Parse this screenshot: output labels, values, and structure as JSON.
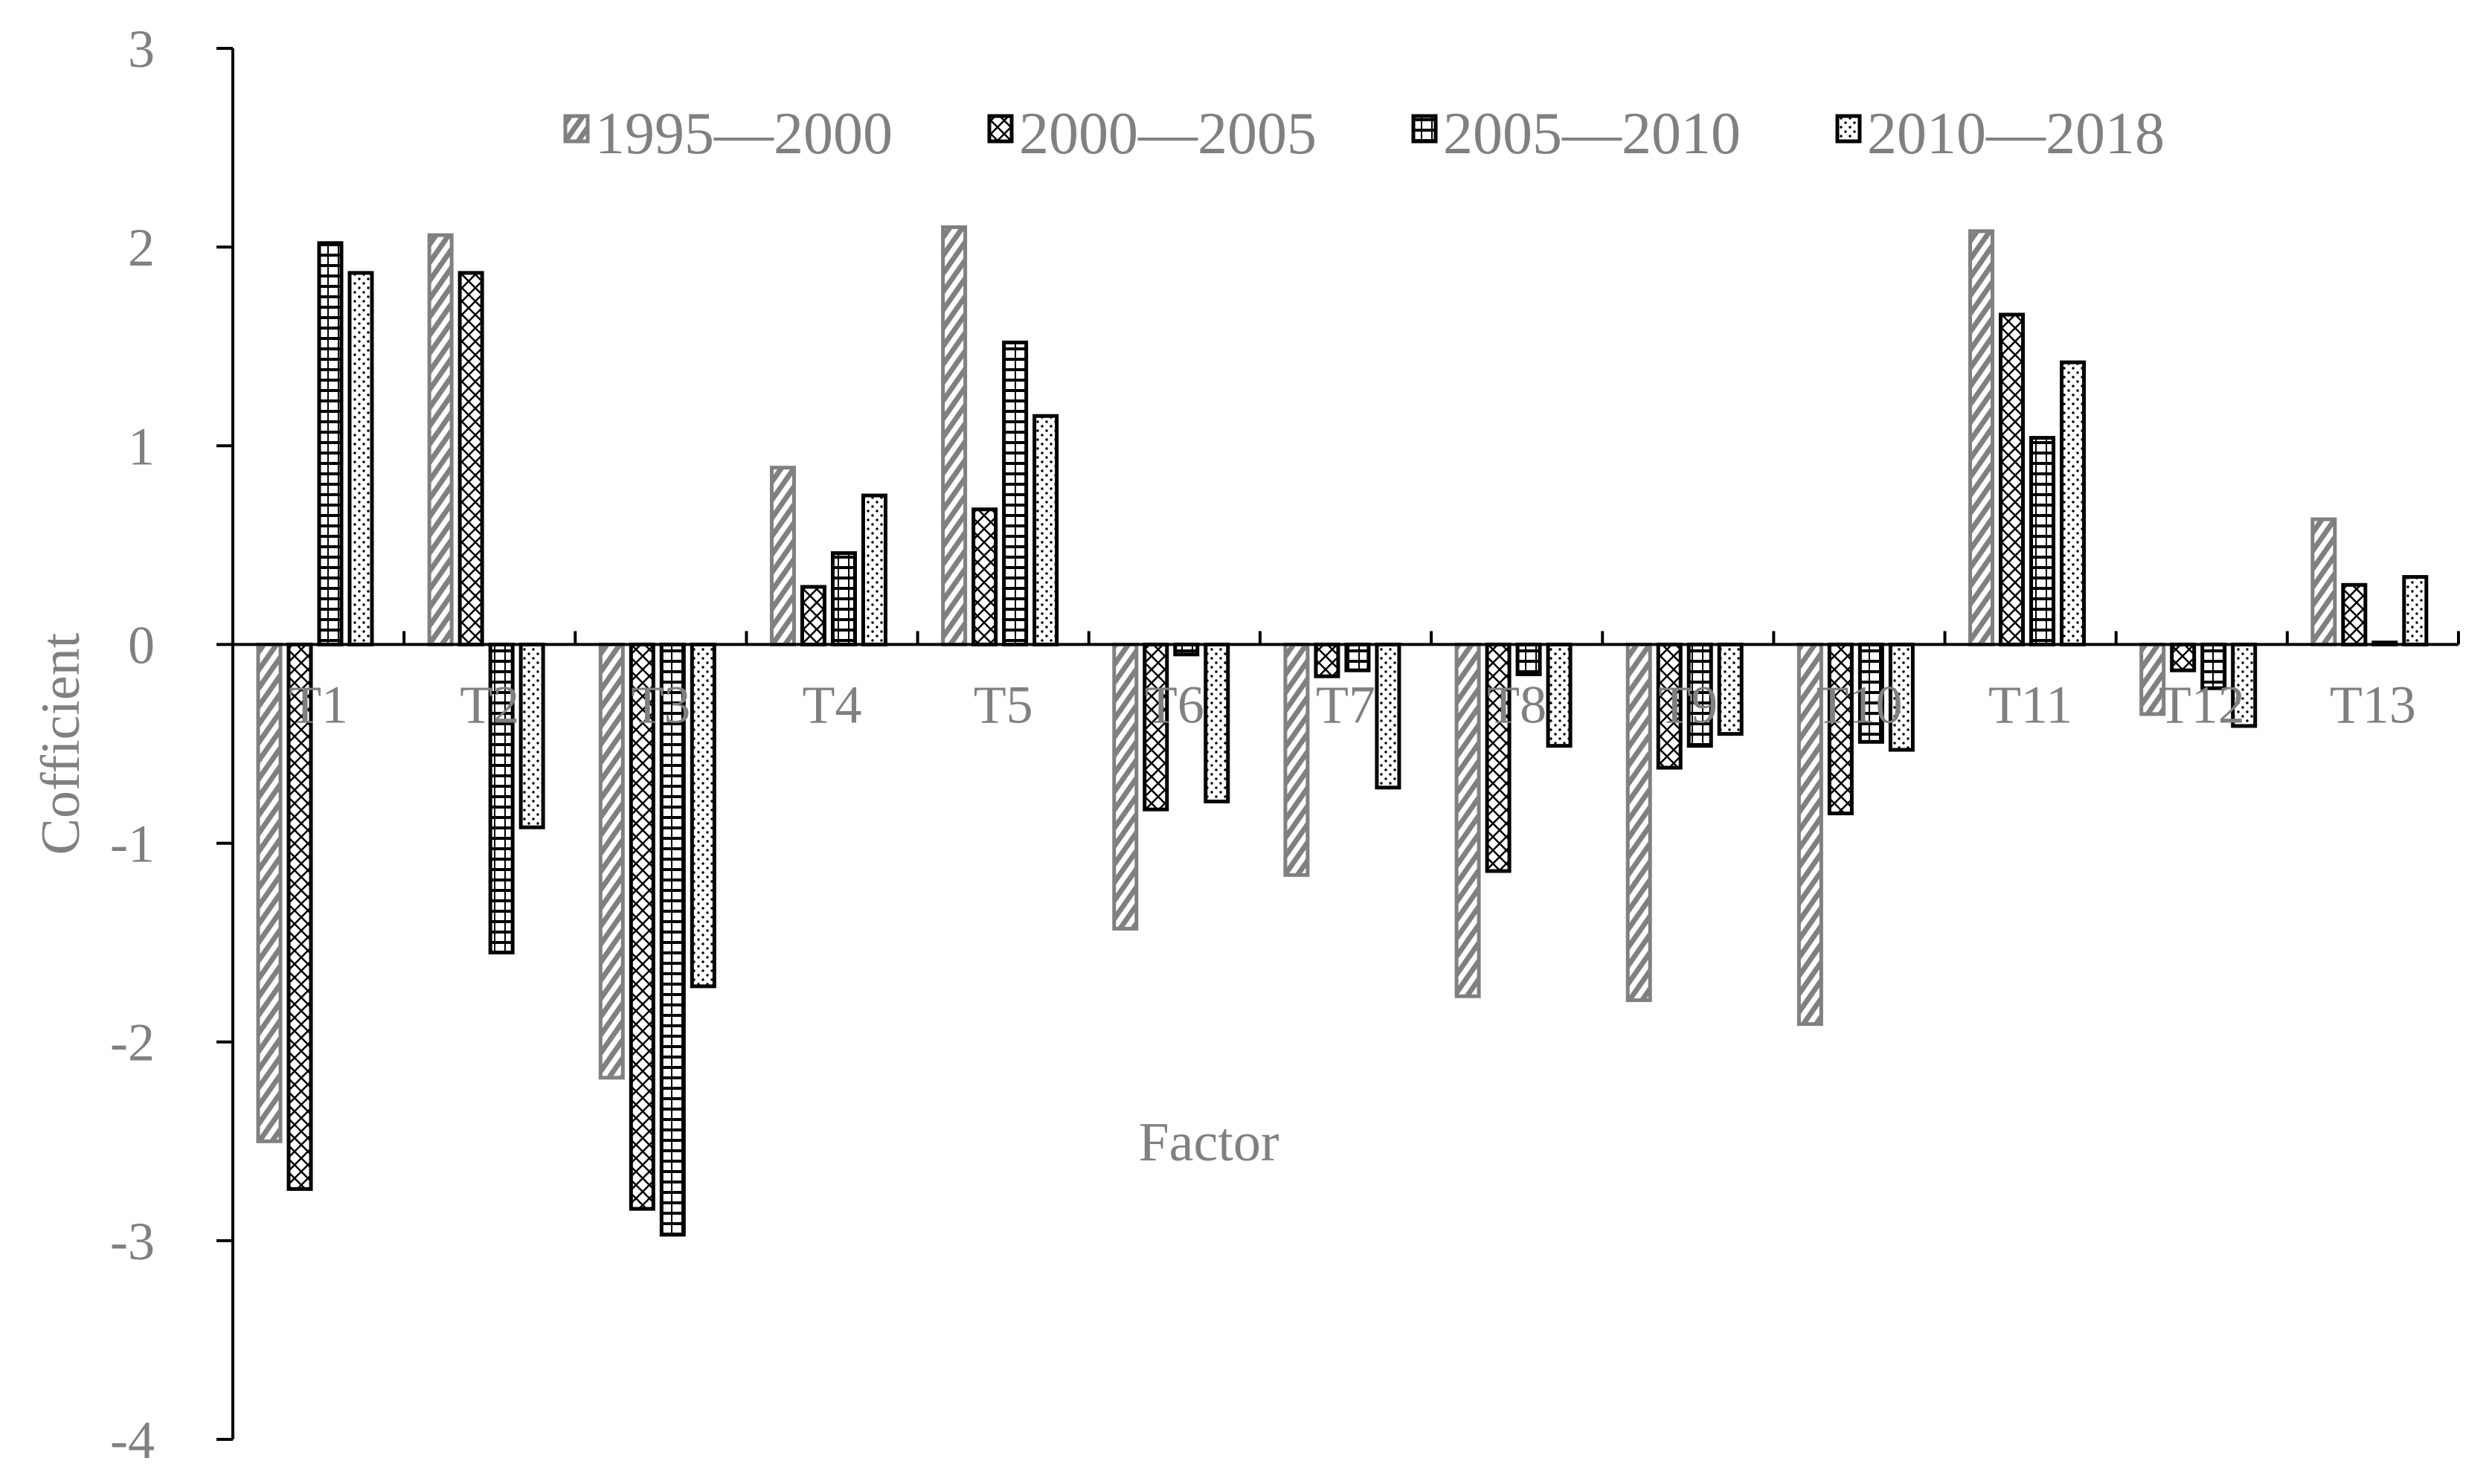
{
  "chart_data": {
    "type": "bar",
    "xlabel": "Factor",
    "ylabel": "Cofficient",
    "ylim": [
      -4,
      3
    ],
    "yticks": [
      3,
      2,
      1,
      0,
      -1,
      -2,
      -3,
      -4
    ],
    "legend_position": "top",
    "grid": false,
    "categories": [
      "T1",
      "T2",
      "T3",
      "T4",
      "T5",
      "T6",
      "T7",
      "T8",
      "T9",
      "T10",
      "T11",
      "T12",
      "T13"
    ],
    "series": [
      {
        "name": "1995—2000",
        "pattern": "diagonal",
        "color": "#808080",
        "values": [
          -2.5,
          2.06,
          -2.18,
          0.89,
          2.1,
          -1.43,
          -1.16,
          -1.77,
          -1.79,
          -1.91,
          2.08,
          -0.35,
          0.63
        ]
      },
      {
        "name": "2000—2005",
        "pattern": "crosshatch",
        "color": "#000000",
        "values": [
          -2.74,
          1.87,
          -2.84,
          0.29,
          0.68,
          -0.83,
          -0.16,
          -1.14,
          -0.62,
          -0.85,
          1.66,
          -0.13,
          0.3
        ]
      },
      {
        "name": "2005—2010",
        "pattern": "horizontal",
        "color": "#000000",
        "values": [
          2.02,
          -1.55,
          -2.97,
          0.46,
          1.52,
          -0.05,
          -0.13,
          -0.15,
          -0.51,
          -0.49,
          1.04,
          -0.22,
          0.01
        ]
      },
      {
        "name": "2010—2018",
        "pattern": "dots",
        "color": "#000000",
        "values": [
          1.87,
          -0.92,
          -1.72,
          0.75,
          1.15,
          -0.79,
          -0.72,
          -0.51,
          -0.45,
          -0.53,
          1.42,
          -0.41,
          0.34
        ]
      }
    ]
  }
}
